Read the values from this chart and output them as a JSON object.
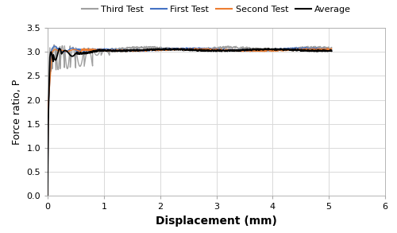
{
  "title": "",
  "xlabel": "Displacement (mm)",
  "ylabel": "Force ratio, P",
  "xlim": [
    0,
    6
  ],
  "ylim": [
    0,
    3.5
  ],
  "xticks": [
    0,
    1,
    2,
    3,
    4,
    5,
    6
  ],
  "yticks": [
    0,
    0.5,
    1,
    1.5,
    2,
    2.5,
    3,
    3.5
  ],
  "legend": [
    "First Test",
    "Second Test",
    "Third Test",
    "Average"
  ],
  "colors": {
    "first": "#4472C4",
    "second": "#ED7D31",
    "third": "#A0A0A0",
    "average": "#000000"
  },
  "linewidths": {
    "first": 1.0,
    "second": 1.0,
    "third": 1.0,
    "average": 1.3
  },
  "grid_color": "#D9D9D9",
  "spine_color": "#AAAAAA",
  "background_color": "#FFFFFF",
  "xlabel_fontsize": 10,
  "ylabel_fontsize": 9,
  "tick_fontsize": 8,
  "legend_fontsize": 8
}
